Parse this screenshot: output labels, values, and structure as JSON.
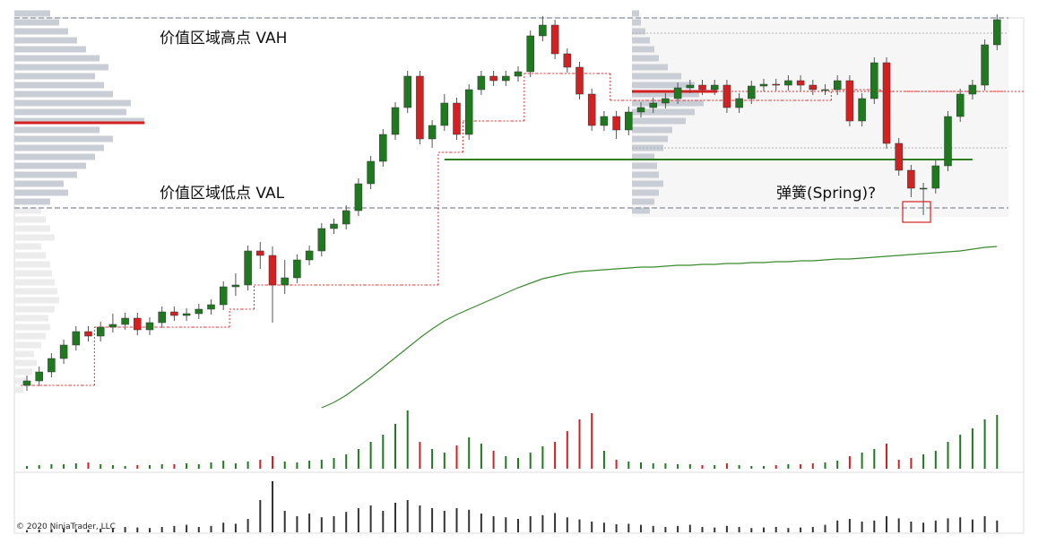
{
  "chart_data": {
    "type": "candlestick",
    "annotations": [
      "价值区域高点 VAH",
      "价值区域低点 VAL",
      "弹簧(Spring)?"
    ],
    "copyright": "© 2020 NinjaTrader, LLC",
    "colors": {
      "up": "#1f7a1f",
      "down": "#d42020"
    },
    "ylim": [
      0,
      440
    ],
    "open": [
      25,
      30,
      40,
      55,
      70,
      85,
      80,
      90,
      93,
      100,
      87,
      95,
      107,
      103,
      105,
      110,
      115,
      135,
      137,
      175,
      170,
      137,
      145,
      165,
      175,
      200,
      205,
      220,
      250,
      275,
      305,
      335,
      370,
      300,
      315,
      340,
      305,
      355,
      370,
      365,
      370,
      375,
      415,
      427,
      395,
      380,
      350,
      315,
      325,
      310,
      330,
      335,
      340,
      345,
      357,
      360,
      355,
      360,
      335,
      345,
      359,
      361,
      360,
      365,
      360,
      355,
      355,
      365,
      320,
      345,
      385,
      295,
      265,
      245,
      245,
      270,
      325,
      350,
      360,
      405
    ],
    "high": [
      36,
      46,
      61,
      76,
      91,
      91,
      96,
      105,
      106,
      106,
      101,
      113,
      113,
      111,
      116,
      121,
      141,
      150,
      181,
      185,
      180,
      165,
      171,
      181,
      206,
      211,
      226,
      256,
      281,
      311,
      341,
      376,
      376,
      321,
      350,
      346,
      361,
      376,
      376,
      376,
      381,
      421,
      437,
      433,
      401,
      386,
      356,
      331,
      331,
      336,
      341,
      346,
      351,
      363,
      366,
      366,
      366,
      366,
      351,
      365,
      367,
      367,
      371,
      371,
      366,
      361,
      371,
      371,
      351,
      391,
      391,
      301,
      271,
      251,
      276,
      331,
      356,
      366,
      411,
      439
    ],
    "low": [
      19,
      24,
      34,
      49,
      64,
      74,
      74,
      84,
      87,
      81,
      81,
      89,
      97,
      97,
      99,
      104,
      109,
      125,
      131,
      155,
      95,
      127,
      139,
      159,
      169,
      194,
      199,
      214,
      244,
      269,
      299,
      329,
      294,
      290,
      309,
      299,
      299,
      349,
      359,
      359,
      364,
      369,
      409,
      389,
      374,
      344,
      309,
      309,
      300,
      304,
      324,
      329,
      334,
      339,
      351,
      349,
      349,
      329,
      329,
      339,
      353,
      354,
      354,
      354,
      349,
      349,
      349,
      314,
      314,
      339,
      289,
      259,
      235,
      215,
      239,
      264,
      319,
      344,
      354,
      399
    ],
    "close": [
      30,
      40,
      55,
      70,
      85,
      80,
      90,
      93,
      100,
      87,
      95,
      107,
      103,
      105,
      110,
      115,
      135,
      137,
      175,
      170,
      137,
      145,
      165,
      175,
      200,
      205,
      220,
      250,
      275,
      305,
      335,
      370,
      300,
      315,
      340,
      305,
      355,
      370,
      365,
      370,
      375,
      415,
      427,
      395,
      380,
      350,
      315,
      325,
      310,
      330,
      335,
      340,
      345,
      357,
      360,
      355,
      360,
      335,
      345,
      359,
      361,
      360,
      365,
      360,
      355,
      355,
      365,
      320,
      345,
      385,
      295,
      265,
      245,
      245,
      270,
      325,
      350,
      360,
      405,
      433
    ],
    "volume": {
      "ylim": [
        0,
        70
      ],
      "values": [
        3,
        4,
        5,
        5,
        6,
        7,
        5,
        4,
        3,
        4,
        4,
        5,
        5,
        6,
        5,
        7,
        9,
        6,
        8,
        10,
        14,
        8,
        7,
        9,
        10,
        12,
        16,
        22,
        30,
        38,
        50,
        65,
        30,
        22,
        18,
        26,
        35,
        28,
        20,
        14,
        12,
        18,
        25,
        30,
        42,
        55,
        62,
        20,
        10,
        8,
        7,
        6,
        6,
        5,
        5,
        4,
        4,
        6,
        4,
        3,
        3,
        4,
        5,
        5,
        6,
        7,
        9,
        14,
        18,
        22,
        28,
        10,
        12,
        16,
        20,
        30,
        38,
        45,
        55,
        60
      ]
    },
    "volume2": {
      "color": "#333333",
      "ylim": [
        0,
        100
      ],
      "values": [
        4,
        5,
        6,
        8,
        6,
        5,
        7,
        8,
        10,
        9,
        8,
        10,
        12,
        14,
        10,
        12,
        18,
        16,
        25,
        60,
        95,
        40,
        30,
        35,
        28,
        30,
        38,
        45,
        50,
        40,
        55,
        60,
        50,
        45,
        40,
        45,
        42,
        35,
        30,
        28,
        25,
        30,
        32,
        36,
        28,
        24,
        20,
        18,
        15,
        16,
        14,
        12,
        10,
        12,
        14,
        10,
        9,
        12,
        10,
        8,
        9,
        10,
        8,
        9,
        10,
        14,
        22,
        25,
        20,
        22,
        30,
        26,
        20,
        18,
        22,
        26,
        28,
        24,
        30,
        22
      ]
    },
    "ma": {
      "color": "#3a8a2e",
      "values": [
        null,
        null,
        null,
        null,
        null,
        null,
        null,
        null,
        null,
        null,
        null,
        null,
        null,
        null,
        null,
        null,
        null,
        null,
        null,
        null,
        null,
        null,
        null,
        null,
        0,
        6,
        14,
        24,
        34,
        45,
        56,
        67,
        78,
        88,
        97,
        104,
        110,
        116,
        122,
        128,
        134,
        139,
        144,
        147,
        150,
        152,
        153,
        154,
        155,
        156,
        157,
        157,
        158,
        159,
        159,
        160,
        160,
        161,
        161,
        162,
        162,
        163,
        163,
        164,
        164,
        165,
        166,
        166,
        167,
        168,
        169,
        170,
        171,
        172,
        173,
        174,
        175,
        177,
        179,
        180
      ]
    },
    "poc_step": {
      "color": "#e03030",
      "values": [
        25,
        25,
        25,
        25,
        25,
        25,
        90,
        90,
        90,
        90,
        90,
        90,
        90,
        90,
        90,
        90,
        90,
        110,
        110,
        137,
        137,
        137,
        137,
        137,
        137,
        137,
        137,
        137,
        137,
        137,
        137,
        137,
        137,
        137,
        285,
        285,
        320,
        320,
        320,
        320,
        320,
        373,
        373,
        373,
        373,
        373,
        373,
        373,
        343,
        343,
        343,
        343,
        343,
        343,
        343,
        343,
        343,
        343,
        343,
        343,
        343,
        343,
        343,
        343,
        343,
        343,
        355,
        355,
        355,
        355,
        353,
        353,
        353,
        353,
        353,
        353,
        353,
        353,
        353,
        353
      ]
    },
    "profile_left": {
      "prices": [
        20,
        30,
        40,
        50,
        60,
        70,
        80,
        90,
        100,
        110,
        120,
        130,
        140,
        150,
        160,
        170,
        180,
        190,
        200,
        210,
        220,
        230,
        240,
        250,
        260,
        270,
        280,
        290,
        300,
        310,
        320,
        330,
        340,
        350,
        360,
        370,
        380,
        390,
        400,
        410,
        420,
        430,
        440
      ],
      "volumes": [
        10,
        15,
        20,
        25,
        22,
        30,
        35,
        40,
        38,
        45,
        50,
        48,
        45,
        42,
        40,
        35,
        30,
        45,
        40,
        35,
        30,
        40,
        60,
        55,
        70,
        80,
        90,
        100,
        110,
        95,
        145,
        125,
        130,
        110,
        100,
        90,
        105,
        95,
        80,
        70,
        60,
        50,
        40
      ]
    },
    "profile_right": {
      "prices": [
        220,
        230,
        240,
        250,
        260,
        270,
        280,
        290,
        300,
        310,
        320,
        330,
        340,
        350,
        360,
        370,
        380,
        390,
        400,
        410,
        420,
        430,
        440
      ],
      "volumes": [
        20,
        25,
        30,
        35,
        30,
        28,
        25,
        35,
        40,
        45,
        60,
        70,
        80,
        75,
        70,
        55,
        40,
        30,
        25,
        20,
        15,
        10,
        8
      ]
    },
    "levels": {
      "vah": 435,
      "val": 223,
      "poc_left": 318,
      "poc_right": 353,
      "support": 277,
      "right_va_high": 418,
      "right_va_low": 290
    },
    "spring_box": [
      207,
      230
    ]
  }
}
